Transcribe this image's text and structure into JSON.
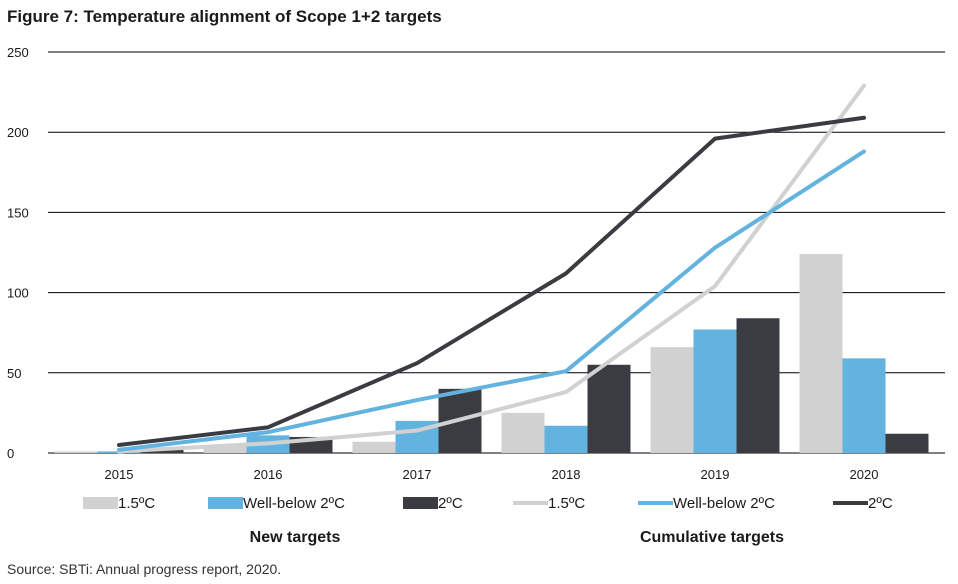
{
  "title": "Figure 7: Temperature alignment of Scope 1+2 targets",
  "source": "Source: SBTi: Annual progress report, 2020.",
  "colors": {
    "c15": "#d0d1d0",
    "cwb": "#63b3e1",
    "c2": "#3b3c42",
    "grid": "#000000"
  },
  "chart_data": {
    "type": "bar",
    "categories": [
      "2015",
      "2016",
      "2017",
      "2018",
      "2019",
      "2020"
    ],
    "ylim": [
      0,
      250
    ],
    "yticks": [
      0,
      50,
      100,
      150,
      200,
      250
    ],
    "ytick_labels": [
      "0",
      "50",
      "100",
      "150",
      "200",
      "250"
    ],
    "grid": true,
    "bar_series": [
      {
        "name": "1.5ºC",
        "color": "#d0d1d0",
        "values": [
          1,
          5,
          7,
          25,
          66,
          124
        ]
      },
      {
        "name": "Well-below 2ºC",
        "color": "#63b3e1",
        "values": [
          1,
          11,
          20,
          17,
          77,
          59
        ]
      },
      {
        "name": "2ºC",
        "color": "#3b3c42",
        "values": [
          3,
          10,
          40,
          55,
          84,
          12
        ]
      }
    ],
    "line_series": [
      {
        "name": "1.5ºC",
        "color": "#d0d1d0",
        "values": [
          1,
          6,
          14,
          38,
          104,
          229
        ]
      },
      {
        "name": "Well-below 2ºC",
        "color": "#63b3e1",
        "values": [
          2,
          13,
          33,
          51,
          128,
          188
        ]
      },
      {
        "name": "2ºC",
        "color": "#3b3c42",
        "values": [
          5,
          16,
          56,
          112,
          196,
          209
        ]
      }
    ],
    "legend_groups": [
      "New targets",
      "Cumulative targets"
    ],
    "legend_position": "bottom"
  }
}
